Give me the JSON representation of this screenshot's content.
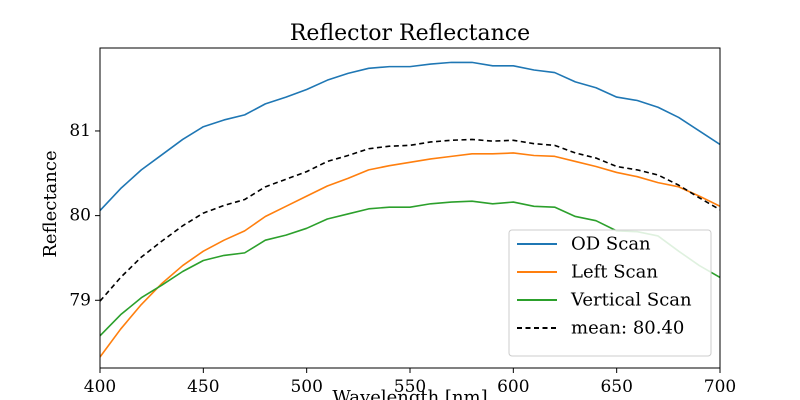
{
  "chart_data": {
    "type": "line",
    "title": "Reflector Reflectance",
    "xlabel": "Wavelength [nm]",
    "ylabel": "Reflectance",
    "xlim": [
      400,
      700
    ],
    "ylim": [
      78.2,
      81.98
    ],
    "xticks": [
      400,
      450,
      500,
      550,
      600,
      650,
      700
    ],
    "yticks": [
      79,
      80,
      81
    ],
    "grid": false,
    "legend_position": "lower-right",
    "x": [
      400,
      410,
      420,
      430,
      440,
      450,
      460,
      470,
      480,
      490,
      500,
      510,
      520,
      530,
      540,
      550,
      560,
      570,
      580,
      590,
      600,
      610,
      620,
      630,
      640,
      650,
      660,
      670,
      680,
      690,
      700
    ],
    "series": [
      {
        "name": "OD Scan",
        "color": "#1f77b4",
        "style": "solid",
        "values": [
          80.06,
          80.32,
          80.54,
          80.72,
          80.9,
          81.05,
          81.13,
          81.19,
          81.32,
          81.4,
          81.49,
          81.6,
          81.68,
          81.74,
          81.76,
          81.76,
          81.79,
          81.81,
          81.81,
          81.77,
          81.77,
          81.72,
          81.69,
          81.58,
          81.51,
          81.4,
          81.36,
          81.28,
          81.16,
          81.0,
          80.84
        ]
      },
      {
        "name": "Left Scan",
        "color": "#ff7f0e",
        "style": "solid",
        "values": [
          78.33,
          78.66,
          78.95,
          79.2,
          79.41,
          79.58,
          79.71,
          79.82,
          79.99,
          80.11,
          80.23,
          80.35,
          80.44,
          80.54,
          80.59,
          80.63,
          80.67,
          80.7,
          80.73,
          80.73,
          80.74,
          80.71,
          80.7,
          80.64,
          80.58,
          80.51,
          80.46,
          80.39,
          80.34,
          80.23,
          80.11
        ]
      },
      {
        "name": "Vertical Scan",
        "color": "#2ca02c",
        "style": "solid",
        "values": [
          78.58,
          78.83,
          79.03,
          79.18,
          79.34,
          79.47,
          79.53,
          79.56,
          79.71,
          79.77,
          79.85,
          79.96,
          80.02,
          80.08,
          80.1,
          80.1,
          80.14,
          80.16,
          80.17,
          80.14,
          80.16,
          80.11,
          80.1,
          79.99,
          79.94,
          79.82,
          79.81,
          79.76,
          79.58,
          79.41,
          79.27
        ]
      },
      {
        "name": "mean: 80.40",
        "color": "#000000",
        "style": "dashed",
        "values": [
          78.99,
          79.27,
          79.51,
          79.7,
          79.88,
          80.03,
          80.12,
          80.19,
          80.34,
          80.43,
          80.52,
          80.64,
          80.71,
          80.79,
          80.82,
          80.83,
          80.87,
          80.89,
          80.9,
          80.88,
          80.89,
          80.85,
          80.83,
          80.74,
          80.68,
          80.58,
          80.54,
          80.48,
          80.36,
          80.21,
          80.07
        ]
      }
    ]
  }
}
